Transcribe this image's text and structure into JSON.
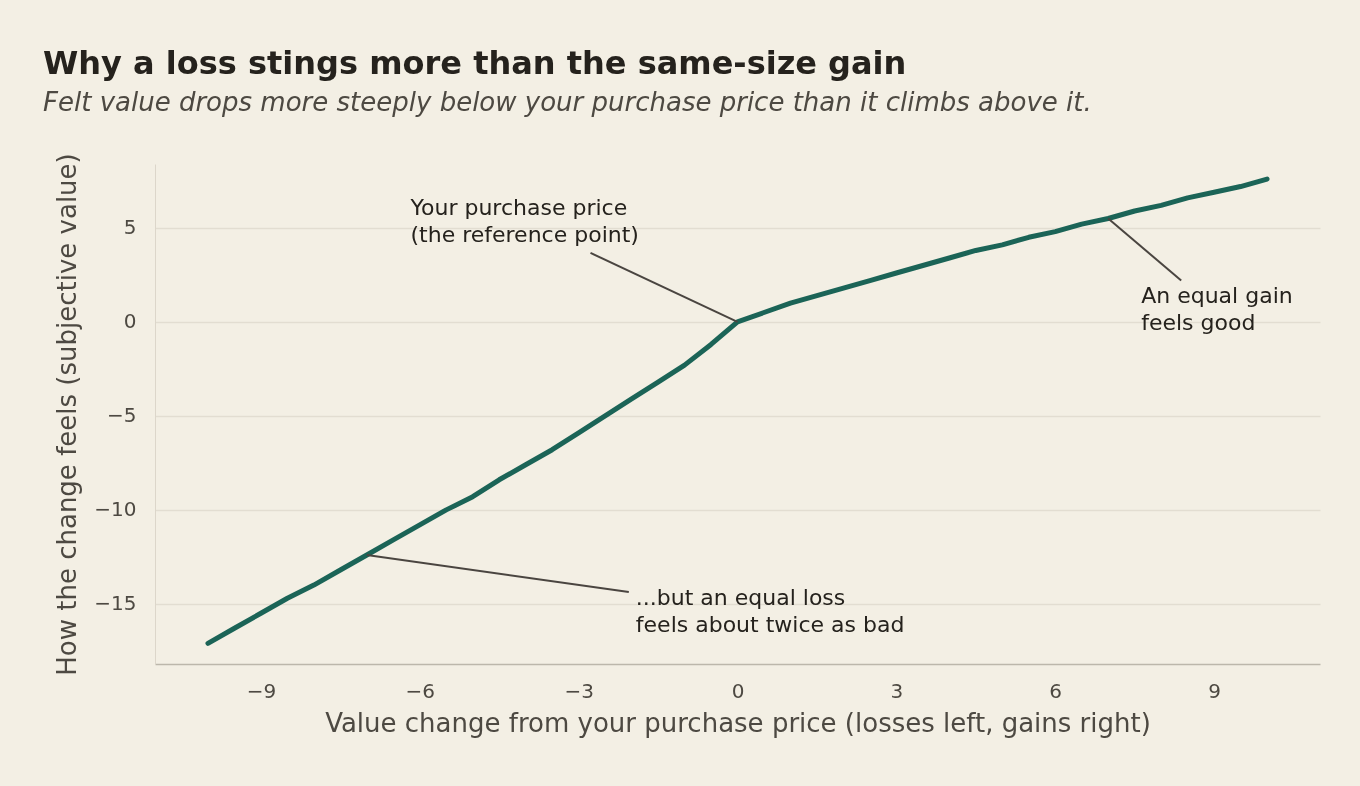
{
  "chart_data": {
    "type": "line",
    "title": "Why a loss stings more than the same-size gain",
    "subtitle": "Felt value drops more steeply below your purchase price than it climbs above it.",
    "xlabel": "Value change from your purchase price (losses left, gains right)",
    "ylabel": "How the change feels (subjective value)",
    "x": [
      -10,
      -9.5,
      -9,
      -8.5,
      -8,
      -7.5,
      -7,
      -6.5,
      -6,
      -5.5,
      -5,
      -4.5,
      -4,
      -3.5,
      -3,
      -2.5,
      -2,
      -1.5,
      -1,
      -0.5,
      0,
      0.5,
      1,
      1.5,
      2,
      2.5,
      3,
      3.5,
      4,
      4.5,
      5,
      5.5,
      6,
      6.5,
      7,
      7.5,
      8,
      8.5,
      9,
      9.5,
      10
    ],
    "series": [
      {
        "color": "#1b6457",
        "values": [
          -17.1,
          -16.3,
          -15.5,
          -14.7,
          -14.0,
          -13.2,
          -12.4,
          -11.6,
          -10.8,
          -10.0,
          -9.3,
          -8.4,
          -7.6,
          -6.8,
          -5.9,
          -5.0,
          -4.1,
          -3.2,
          -2.3,
          -1.2,
          0,
          0.5,
          1.0,
          1.4,
          1.8,
          2.2,
          2.6,
          3.0,
          3.4,
          3.8,
          4.1,
          4.5,
          4.8,
          5.2,
          5.5,
          5.9,
          6.2,
          6.6,
          6.9,
          7.2,
          7.6
        ]
      }
    ],
    "xlim": [
      -11,
      11
    ],
    "ylim": [
      -18.2,
      8.4
    ],
    "xticks": [
      -9,
      -6,
      -3,
      0,
      3,
      6,
      9
    ],
    "yticks": [
      -15,
      -10,
      -5,
      0,
      5
    ],
    "grid": "y",
    "line_style": "solid",
    "annotations": [
      {
        "text": "Your purchase price\n(the reference point)",
        "x": 0,
        "y": 0
      },
      {
        "text": "An equal gain\nfeels good",
        "x": 7,
        "y": 5.5
      },
      {
        "text": "...but an equal loss\nfeels about twice as bad",
        "x": -7,
        "y": -12.4
      }
    ]
  }
}
